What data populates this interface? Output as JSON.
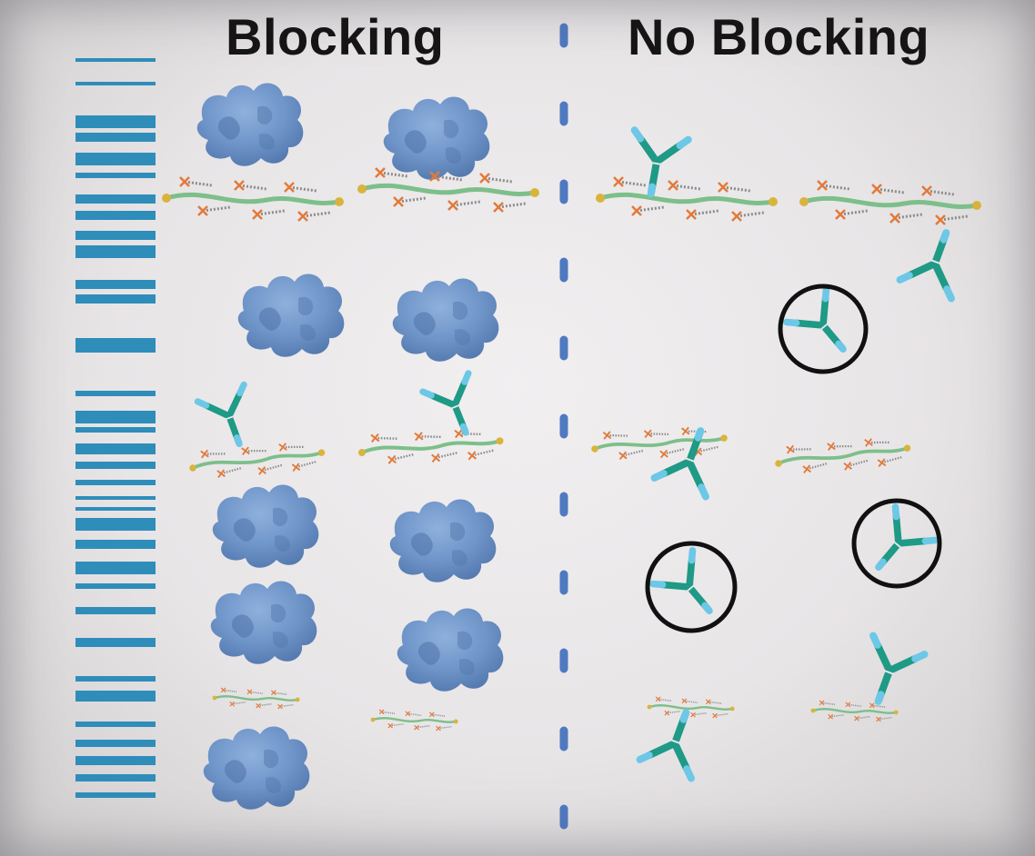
{
  "headings": {
    "left": "Blocking",
    "right": "No Blocking"
  },
  "colors": {
    "background": "#e9e6e8",
    "heading": "#151515",
    "barcode_bands": "#2f8dba",
    "divider": "#4f79c0",
    "blocking_protein": "#6f95c9",
    "antigen_strand": "#7dbf8a",
    "side_chain": "#8c8c8c",
    "side_chain_marker": "#e27a3a",
    "strand_end_cap": "#d9b43d",
    "antibody_teal": "#1e9a86",
    "antibody_tip": "#6cc8e6",
    "unbound_circle": "#111111"
  },
  "legend": {
    "blocking_side": "blocking-protein blobs fill the surface; few antibodies bind the antigen strands",
    "no_blocking_side": "no blocking proteins; antibodies bind strands and some stick nonspecifically (circled)"
  }
}
